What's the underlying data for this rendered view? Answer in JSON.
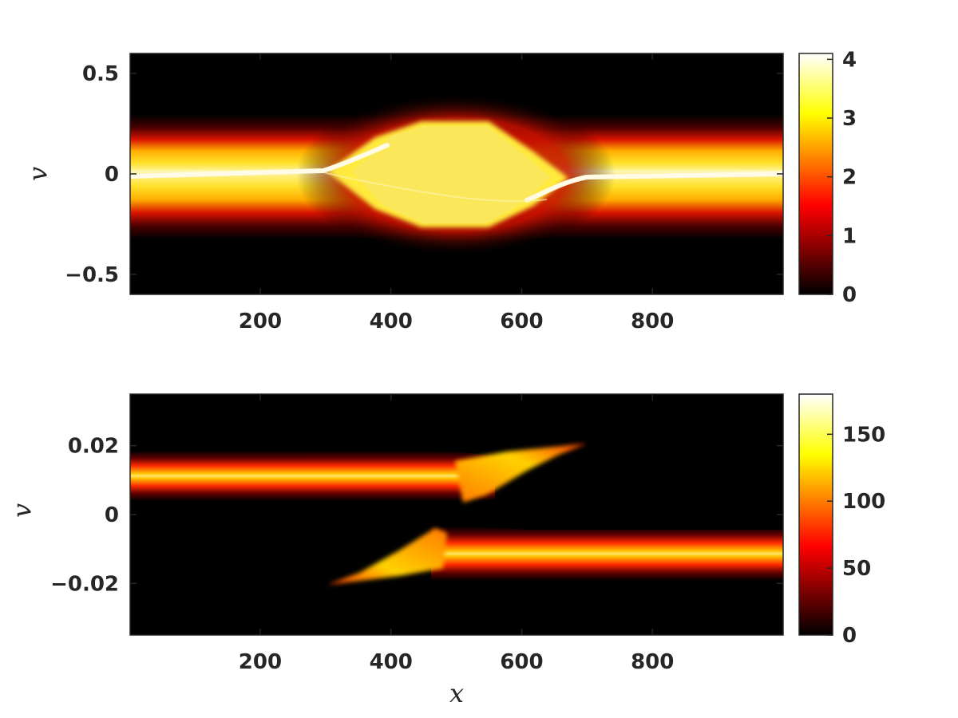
{
  "chart_data": [
    {
      "type": "heatmap",
      "title": "",
      "xlabel": "",
      "ylabel": "v",
      "xlim": [
        1,
        1000
      ],
      "ylim": [
        -0.6,
        0.6
      ],
      "xticks": [
        200,
        400,
        600,
        800
      ],
      "xtick_labels": [
        "200",
        "400",
        "600",
        "800"
      ],
      "yticks": [
        0.5,
        0,
        -0.5
      ],
      "ytick_labels": [
        "0.5",
        "0",
        "−0.5"
      ],
      "colorbar": {
        "clim": [
          0,
          4.1
        ],
        "ticks": [
          0,
          1,
          2,
          3,
          4
        ],
        "tick_labels": [
          "0",
          "1",
          "2",
          "3",
          "4"
        ],
        "colormap": "hot"
      },
      "structure": {
        "band_center_v": 0.0,
        "band_half_width_v": 0.28,
        "band_peak_value": 4.0,
        "plateau_x_range": [
          330,
          670
        ],
        "plateau_half_width_v": 0.27,
        "plateau_value": 3.6
      }
    },
    {
      "type": "heatmap",
      "title": "",
      "xlabel": "x",
      "ylabel": "v",
      "xlim": [
        1,
        1000
      ],
      "ylim": [
        -0.035,
        0.035
      ],
      "xticks": [
        200,
        400,
        600,
        800
      ],
      "xtick_labels": [
        "200",
        "400",
        "600",
        "800"
      ],
      "yticks": [
        0.02,
        0,
        -0.02
      ],
      "ytick_labels": [
        "0.02",
        "0",
        "−0.02"
      ],
      "colorbar": {
        "clim": [
          0,
          180
        ],
        "ticks": [
          0,
          50,
          100,
          150
        ],
        "tick_labels": [
          "0",
          "50",
          "100",
          "150"
        ],
        "colormap": "hot"
      },
      "structure": {
        "upper_beam": {
          "center_v": 0.011,
          "half_width_v": 0.007,
          "x_range": [
            1,
            700
          ],
          "peak_value": 180
        },
        "lower_beam": {
          "center_v": -0.011,
          "half_width_v": 0.007,
          "x_range": [
            300,
            1000
          ],
          "peak_value": 180
        }
      }
    }
  ]
}
